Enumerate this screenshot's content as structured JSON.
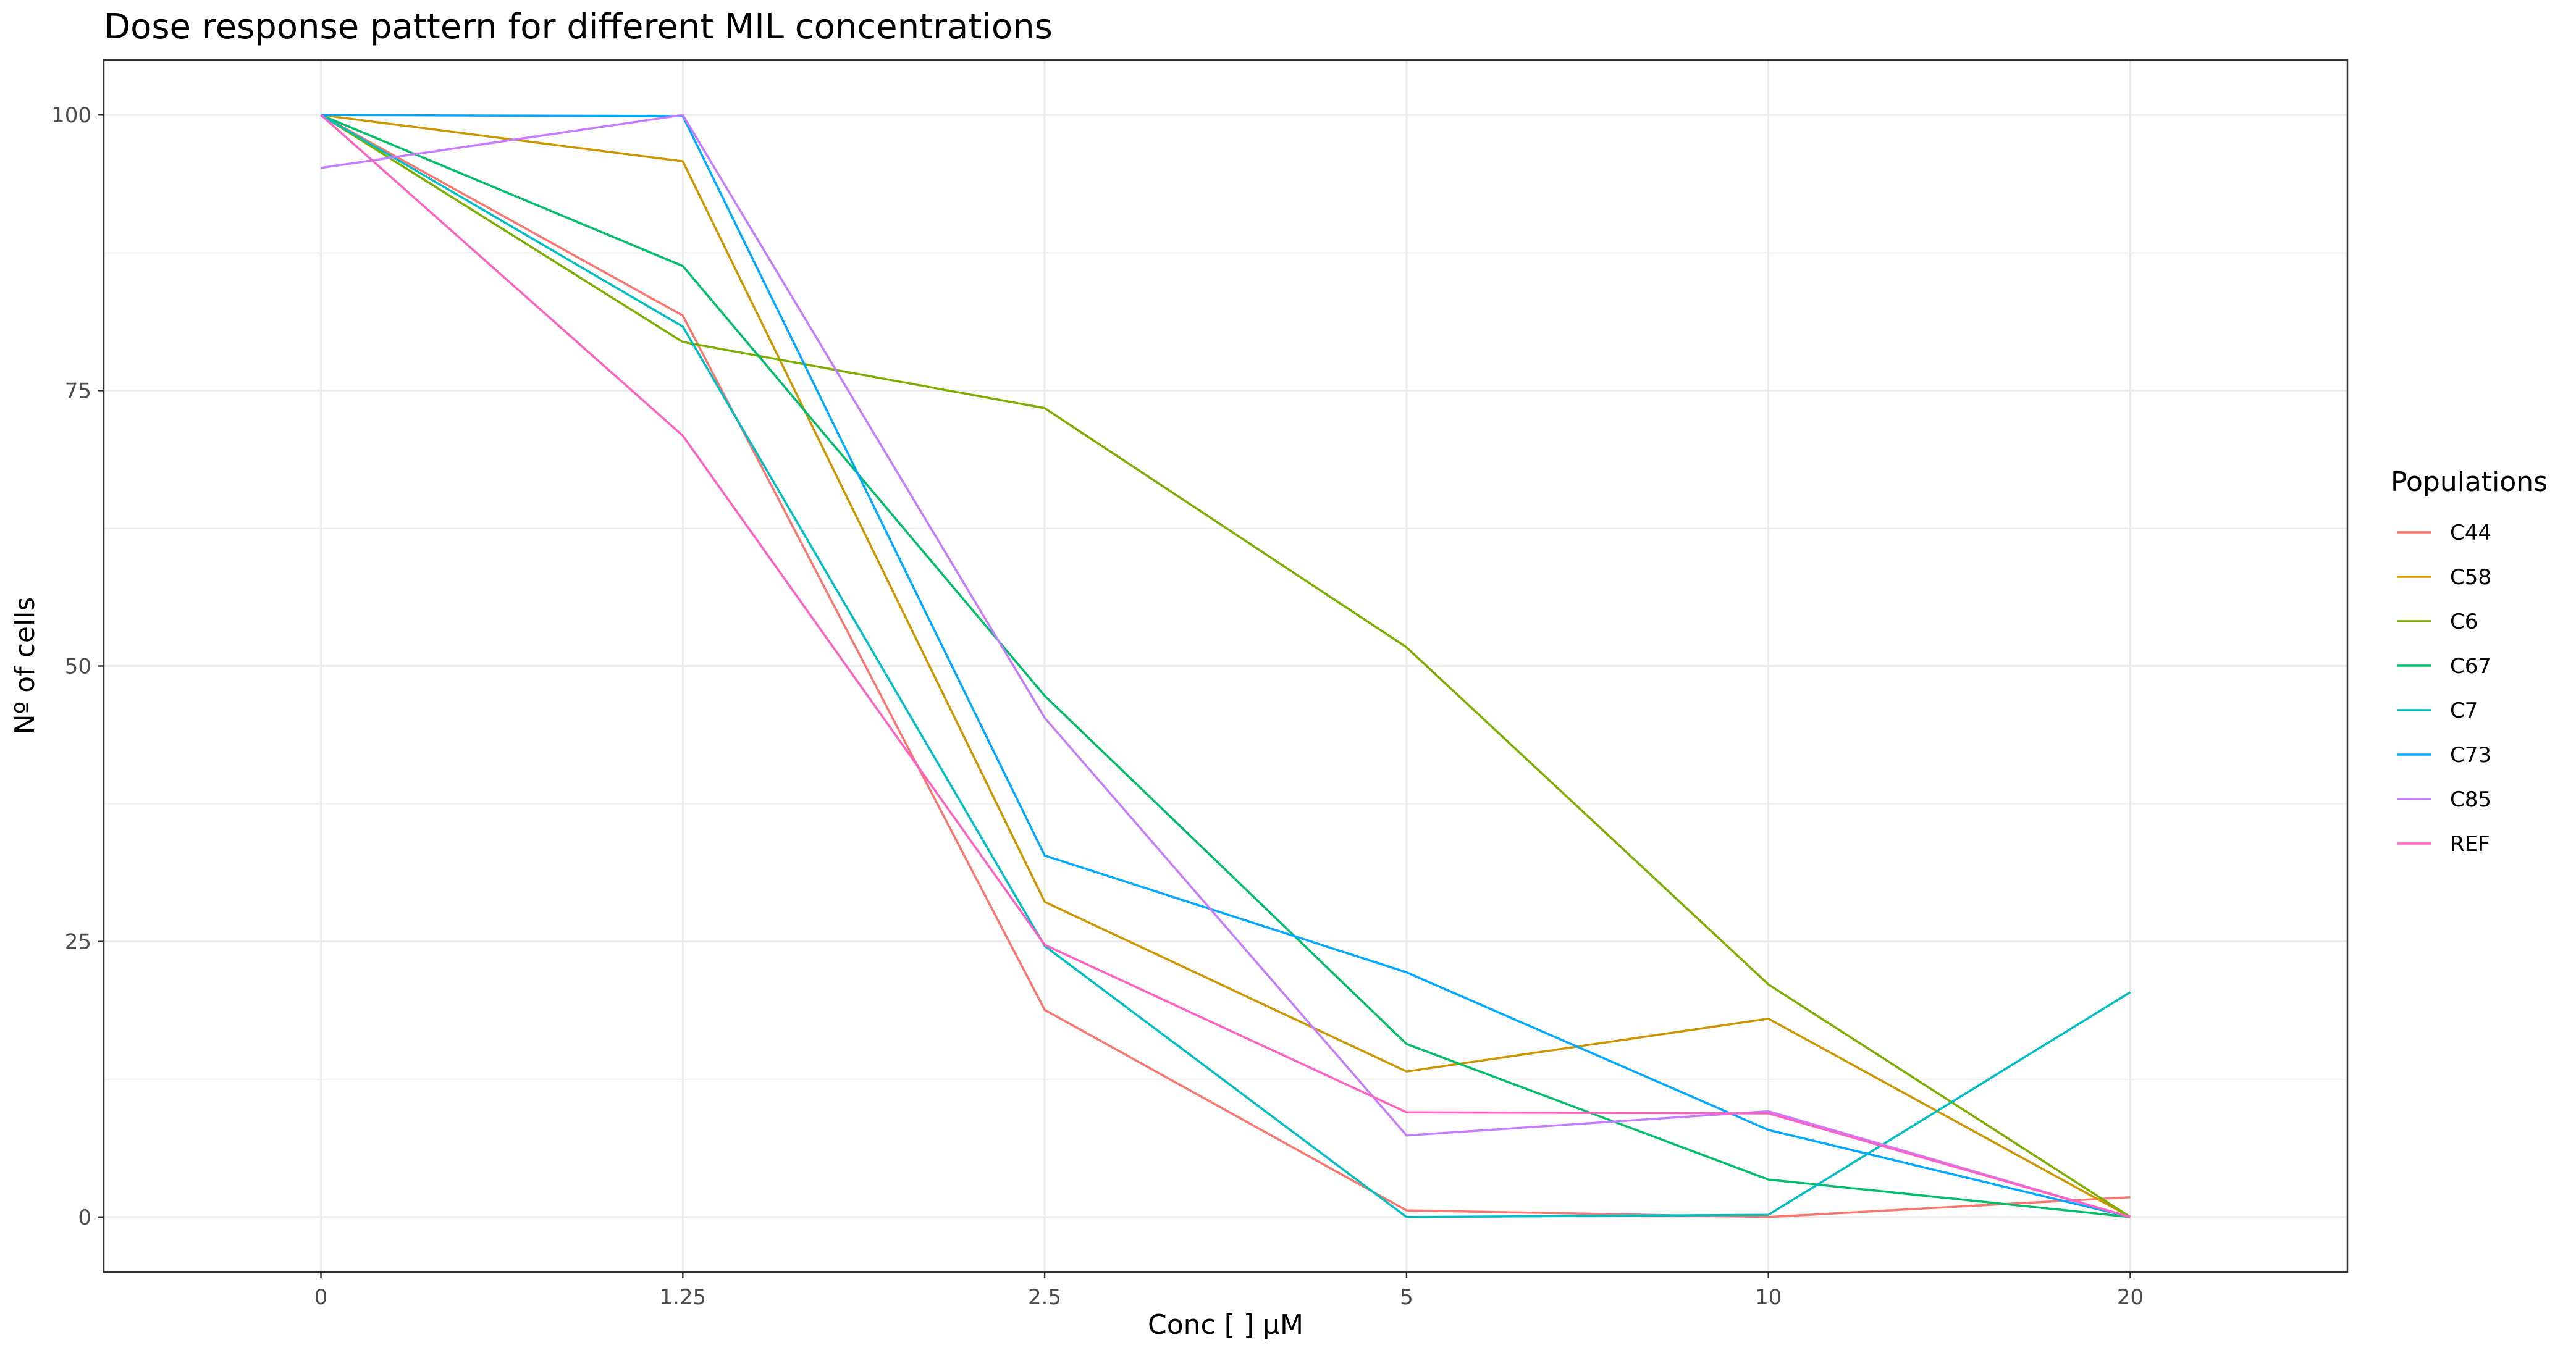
{
  "chart_data": {
    "type": "line",
    "title": "Dose response pattern for different MIL concentrations",
    "xlabel": "Conc [   ] µM",
    "ylabel": "Nº of cells",
    "categories": [
      "0",
      "1.25",
      "2.5",
      "5",
      "10",
      "20"
    ],
    "y_ticks": [
      "0",
      "25",
      "50",
      "75",
      "100"
    ],
    "ylim": [
      -5,
      105
    ],
    "grid": true,
    "legend": {
      "title": "Populations",
      "position": "right"
    },
    "series": [
      {
        "name": "C44",
        "color": "#F8766D",
        "values": [
          100,
          81.8,
          18.8,
          0.6,
          0.0,
          1.8
        ]
      },
      {
        "name": "C58",
        "color": "#CD9600",
        "values": [
          100,
          95.8,
          28.6,
          13.2,
          18.0,
          0.0
        ]
      },
      {
        "name": "C6",
        "color": "#7CAE00",
        "values": [
          100,
          79.4,
          73.4,
          51.7,
          21.1,
          0.0
        ]
      },
      {
        "name": "C67",
        "color": "#00BE67",
        "values": [
          100,
          86.3,
          47.3,
          15.7,
          3.4,
          0.0
        ]
      },
      {
        "name": "C7",
        "color": "#00BFC4",
        "values": [
          100,
          80.8,
          24.6,
          0.0,
          0.2,
          20.4
        ]
      },
      {
        "name": "C73",
        "color": "#00A9FF",
        "values": [
          100,
          99.9,
          32.8,
          22.2,
          7.9,
          0.0
        ]
      },
      {
        "name": "C85",
        "color": "#C77CFF",
        "values": [
          95.2,
          100,
          45.3,
          7.4,
          9.6,
          0.0
        ]
      },
      {
        "name": "REF",
        "color": "#FF61C3",
        "values": [
          100,
          70.9,
          24.7,
          9.5,
          9.4,
          0.0
        ]
      }
    ]
  }
}
